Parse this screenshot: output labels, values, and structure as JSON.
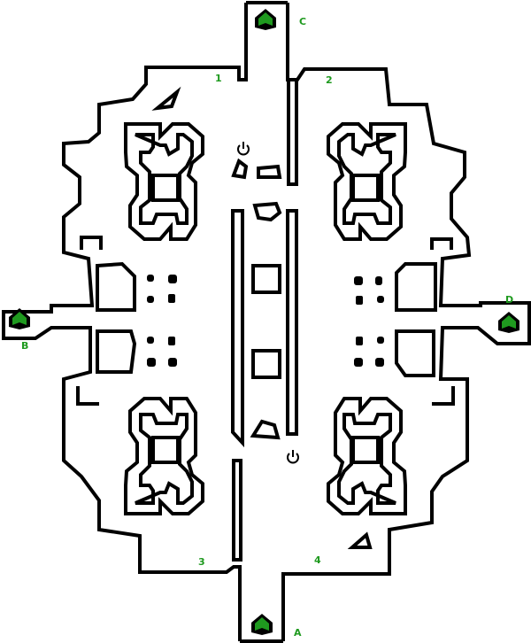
{
  "map": {
    "bases": [
      {
        "id": "A",
        "label": "A"
      },
      {
        "id": "B",
        "label": "B"
      },
      {
        "id": "C",
        "label": "C"
      },
      {
        "id": "D",
        "label": "D"
      }
    ],
    "spawn_labels": [
      {
        "id": "1",
        "label": "1"
      },
      {
        "id": "2",
        "label": "2"
      },
      {
        "id": "3",
        "label": "3"
      },
      {
        "id": "4",
        "label": "4"
      }
    ],
    "colors": {
      "wall": "#000000",
      "background": "#ffffff",
      "label": "#1f9a1f",
      "base_fill": "#1f9a1f"
    },
    "icons": [
      "base-marker-icon",
      "power-up-icon"
    ]
  }
}
